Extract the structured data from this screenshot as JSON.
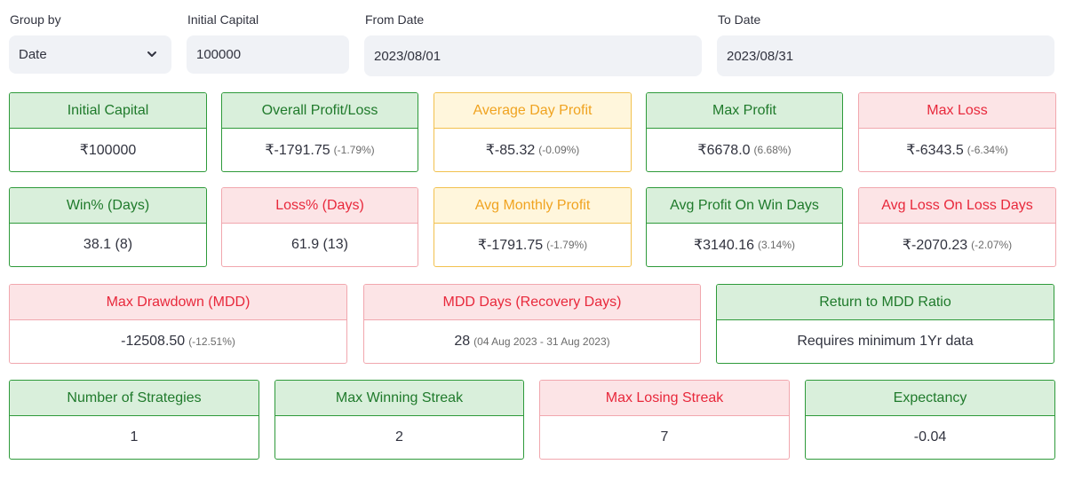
{
  "controls": {
    "group_by": {
      "label": "Group by",
      "value": "Date"
    },
    "initial_capital": {
      "label": "Initial Capital",
      "value": "100000"
    },
    "from_date": {
      "label": "From Date",
      "value": "2023/08/01"
    },
    "to_date": {
      "label": "To Date",
      "value": "2023/08/31"
    }
  },
  "cards": {
    "initial_capital": {
      "title": "Initial Capital",
      "value": "₹100000",
      "pct": ""
    },
    "overall_pl": {
      "title": "Overall Profit/Loss",
      "value": "₹-1791.75",
      "pct": "(-1.79%)"
    },
    "avg_day_profit": {
      "title": "Average Day Profit",
      "value": "₹-85.32",
      "pct": "(-0.09%)"
    },
    "max_profit": {
      "title": "Max Profit",
      "value": "₹6678.0",
      "pct": "(6.68%)"
    },
    "max_loss": {
      "title": "Max Loss",
      "value": "₹-6343.5",
      "pct": "(-6.34%)"
    },
    "win_pct": {
      "title": "Win% (Days)",
      "value": "38.1 (8)",
      "pct": ""
    },
    "loss_pct": {
      "title": "Loss% (Days)",
      "value": "61.9 (13)",
      "pct": ""
    },
    "avg_monthly_profit": {
      "title": "Avg Monthly Profit",
      "value": "₹-1791.75",
      "pct": "(-1.79%)"
    },
    "avg_profit_win_days": {
      "title": "Avg Profit On Win Days",
      "value": "₹3140.16",
      "pct": "(3.14%)"
    },
    "avg_loss_loss_days": {
      "title": "Avg Loss On Loss Days",
      "value": "₹-2070.23",
      "pct": "(-2.07%)"
    },
    "max_drawdown": {
      "title": "Max Drawdown (MDD)",
      "value": "-12508.50",
      "pct": "(-12.51%)"
    },
    "mdd_days": {
      "title": "MDD Days (Recovery Days)",
      "value": "28",
      "pct": "(04 Aug 2023 - 31 Aug 2023)"
    },
    "return_mdd_ratio": {
      "title": "Return to MDD Ratio",
      "value": "Requires minimum 1Yr data",
      "pct": ""
    },
    "num_strategies": {
      "title": "Number of Strategies",
      "value": "1",
      "pct": ""
    },
    "max_win_streak": {
      "title": "Max Winning Streak",
      "value": "2",
      "pct": ""
    },
    "max_lose_streak": {
      "title": "Max Losing Streak",
      "value": "7",
      "pct": ""
    },
    "expectancy": {
      "title": "Expectancy",
      "value": "-0.04",
      "pct": ""
    }
  },
  "colors": {
    "green_header": "#d9efdb",
    "green_border": "#2e9a3a",
    "green_text": "#1f7a2b",
    "red_header": "#fce4e6",
    "red_border": "#f1a7ae",
    "red_text": "#e8283b",
    "yellow_header": "#fff6dc",
    "yellow_border": "#f2c14e",
    "yellow_text": "#f0a320",
    "input_bg": "#f0f2f6"
  },
  "icons": {
    "group_by_dropdown": "chevron-down-icon"
  }
}
